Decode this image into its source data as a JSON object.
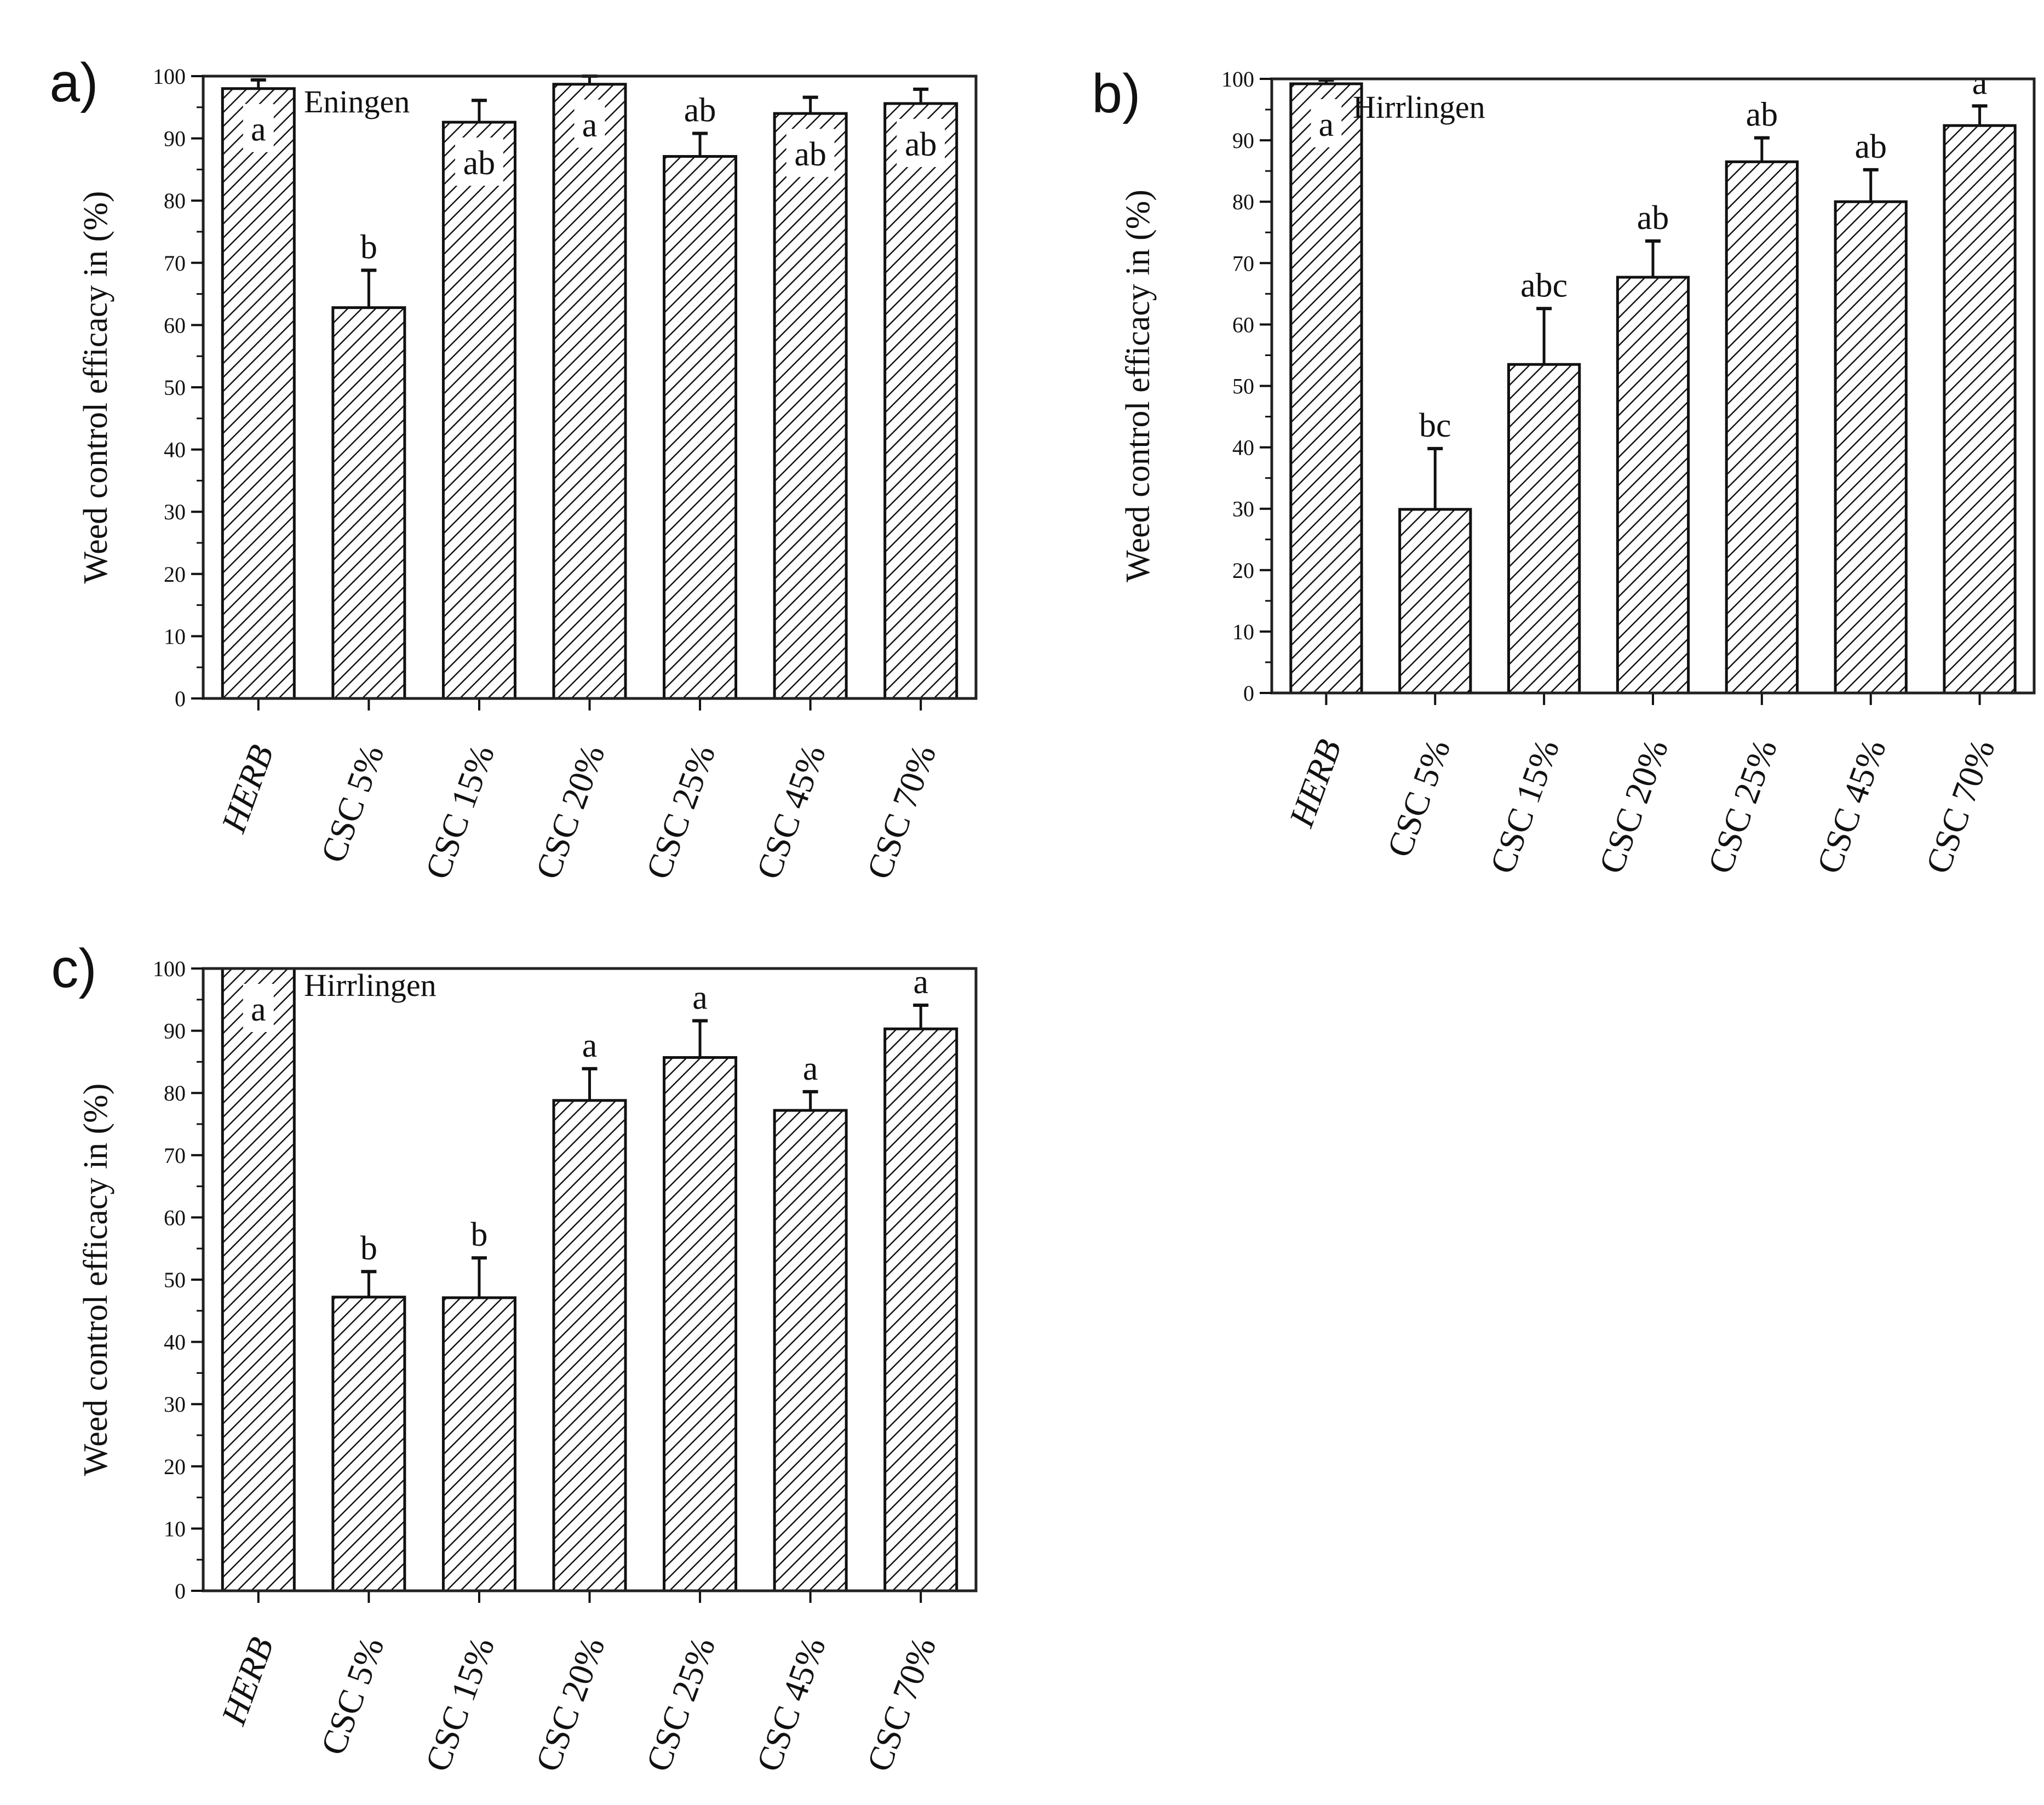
{
  "chart_data": [
    {
      "panel": "a)",
      "type": "bar",
      "site_label": "Eningen",
      "title": "",
      "xlabel": "",
      "ylabel": "Weed control efficacy in (%)",
      "ylim": [
        0,
        100
      ],
      "yticks": [
        0,
        10,
        20,
        30,
        40,
        50,
        60,
        70,
        80,
        90,
        100
      ],
      "categories": [
        "HERB",
        "CSC 5%",
        "CSC 15%",
        "CSC 20%",
        "CSC 25%",
        "CSC 45%",
        "CSC 70%"
      ],
      "values": [
        98.0,
        62.8,
        92.6,
        98.7,
        87.1,
        94.0,
        95.6
      ],
      "error_upper": [
        99.4,
        68.8,
        96.1,
        100.0,
        90.8,
        96.6,
        97.9
      ],
      "letters": [
        "a",
        "b",
        "ab",
        "a",
        "ab",
        "ab",
        "ab"
      ],
      "letter_inside_bar": [
        true,
        false,
        true,
        true,
        false,
        true,
        true
      ],
      "grid": false
    },
    {
      "panel": "b)",
      "type": "bar",
      "site_label": "Hirrlingen",
      "title": "",
      "xlabel": "",
      "ylabel": "Weed control efficacy in (%)",
      "ylim": [
        0,
        100
      ],
      "yticks": [
        0,
        10,
        20,
        30,
        40,
        50,
        60,
        70,
        80,
        90,
        100
      ],
      "categories": [
        "HERB",
        "CSC 5%",
        "CSC 15%",
        "CSC 20%",
        "CSC 25%",
        "CSC 45%",
        "CSC 70%"
      ],
      "values": [
        99.2,
        29.9,
        53.5,
        67.7,
        86.5,
        80.0,
        92.4
      ],
      "error_upper": [
        99.8,
        39.8,
        62.6,
        73.6,
        90.4,
        85.2,
        95.6
      ],
      "letters": [
        "a",
        "bc",
        "abc",
        "ab",
        "ab",
        "ab",
        "a"
      ],
      "letter_inside_bar": [
        true,
        false,
        false,
        false,
        false,
        false,
        false
      ],
      "grid": false
    },
    {
      "panel": "c)",
      "type": "bar",
      "site_label": "Hirrlingen",
      "title": "",
      "xlabel": "",
      "ylabel": "Weed control efficacy in (%)",
      "ylim": [
        0,
        100
      ],
      "yticks": [
        0,
        10,
        20,
        30,
        40,
        50,
        60,
        70,
        80,
        90,
        100
      ],
      "categories": [
        "HERB",
        "CSC 5%",
        "CSC 15%",
        "CSC 20%",
        "CSC 25%",
        "CSC 45%",
        "CSC 70%"
      ],
      "values": [
        100.0,
        47.2,
        47.1,
        78.8,
        85.7,
        77.2,
        90.3
      ],
      "error_upper": [
        100.0,
        51.3,
        53.5,
        83.9,
        91.6,
        80.2,
        94.1
      ],
      "letters": [
        "a",
        "b",
        "b",
        "a",
        "a",
        "a",
        "a"
      ],
      "letter_inside_bar": [
        true,
        false,
        false,
        false,
        false,
        false,
        false
      ],
      "grid": false
    }
  ],
  "panels": {
    "a": {
      "letter": "a)",
      "site": "Eningen",
      "ylabel": "Weed control efficacy in (%)"
    },
    "b": {
      "letter": "b)",
      "site": "Hirrlingen",
      "ylabel": "Weed control efficacy in (%)"
    },
    "c": {
      "letter": "c)",
      "site": "Hirrlingen",
      "ylabel": "Weed control efficacy in (%)"
    }
  }
}
